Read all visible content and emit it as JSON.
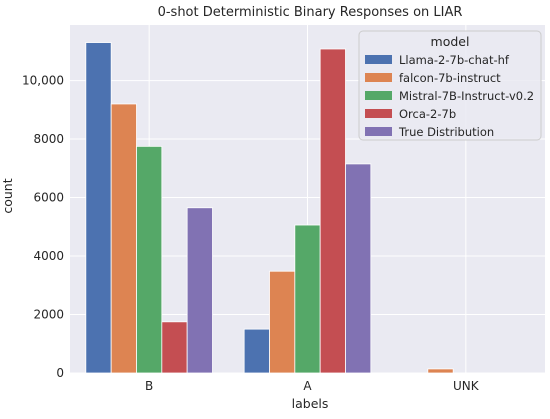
{
  "chart_data": {
    "type": "bar",
    "title": "0-shot Deterministic Binary Responses on LIAR",
    "xlabel": "labels",
    "ylabel": "count",
    "categories": [
      "B",
      "A",
      "UNK"
    ],
    "ylim": [
      0,
      11900
    ],
    "yticks": [
      0,
      2000,
      4000,
      6000,
      8000,
      10000
    ],
    "ytick_labels": [
      "0",
      "2000",
      "4000",
      "6000",
      "8000",
      "10,000"
    ],
    "grid": true,
    "legend": {
      "title": "model",
      "position": "top-right"
    },
    "series": [
      {
        "name": "Llama-2-7b-chat-hf",
        "values": [
          11300,
          1500,
          0
        ],
        "color": "#4c72b0"
      },
      {
        "name": "falcon-7b-instruct",
        "values": [
          9200,
          3480,
          140
        ],
        "color": "#dd8452"
      },
      {
        "name": "Mistral-7B-Instruct-v0.2",
        "values": [
          7750,
          5060,
          0
        ],
        "color": "#55a868"
      },
      {
        "name": "Orca-2-7b",
        "values": [
          1750,
          11080,
          0
        ],
        "color": "#c44e52"
      },
      {
        "name": "True Distribution",
        "values": [
          5650,
          7150,
          0
        ],
        "color": "#8172b3"
      }
    ],
    "background_color": "#eaeaf2",
    "grid_color": "#ffffff"
  }
}
